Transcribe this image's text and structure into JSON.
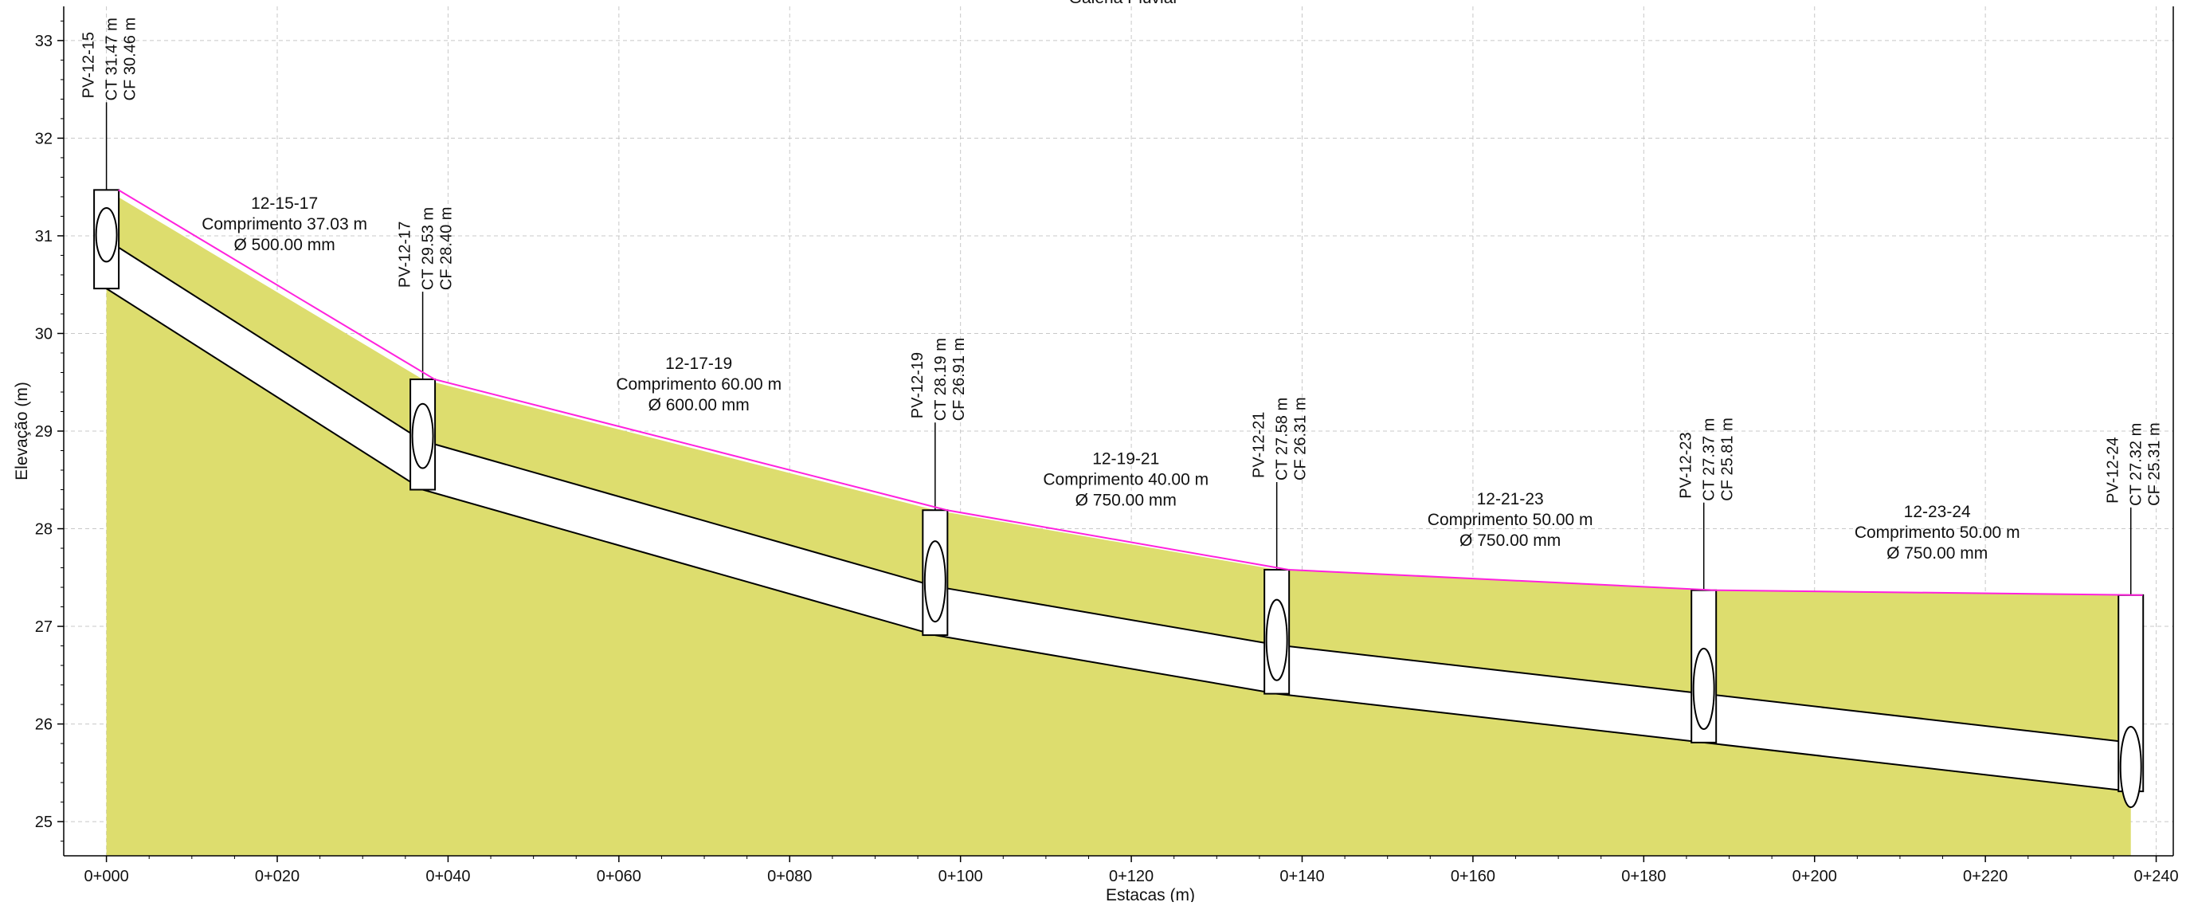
{
  "chart_data": {
    "type": "area",
    "title": "Galeria Pluvial",
    "xlabel": "Estacas (m)",
    "ylabel": "Elevação (m)",
    "xlim": [
      -5,
      242
    ],
    "ylim": [
      24.65,
      33.35
    ],
    "grid": true,
    "x_ticks": [
      0,
      20,
      40,
      60,
      80,
      100,
      120,
      140,
      160,
      180,
      200,
      220,
      240
    ],
    "x_tick_labels": [
      "0+000",
      "0+020",
      "0+040",
      "0+060",
      "0+080",
      "0+100",
      "0+120",
      "0+140",
      "0+160",
      "0+180",
      "0+200",
      "0+220",
      "0+240"
    ],
    "y_ticks": [
      25,
      26,
      27,
      28,
      29,
      30,
      31,
      32,
      33
    ],
    "y_tick_labels": [
      "25",
      "26",
      "27",
      "28",
      "29",
      "30",
      "31",
      "32",
      "33"
    ],
    "ground_profile": {
      "x": [
        0,
        37.03,
        97.03,
        137.03,
        187.03,
        237.03
      ],
      "y": [
        31.47,
        29.53,
        28.19,
        27.58,
        27.37,
        27.32
      ]
    },
    "manholes": [
      {
        "name": "PV-12-15",
        "station": 0,
        "ct_label": "CT",
        "ct": "31.47 m",
        "cf_label": "CF",
        "cf": "30.46 m",
        "top": 31.47,
        "bottom": 30.46
      },
      {
        "name": "PV-12-17",
        "station": 37.03,
        "ct_label": "CT",
        "ct": "29.53 m",
        "cf_label": "CF",
        "cf": "28.40 m",
        "top": 29.53,
        "bottom": 28.4
      },
      {
        "name": "PV-12-19",
        "station": 97.03,
        "ct_label": "CT",
        "ct": "28.19 m",
        "cf_label": "CF",
        "cf": "26.91 m",
        "top": 28.19,
        "bottom": 26.91
      },
      {
        "name": "PV-12-21",
        "station": 137.03,
        "ct_label": "CT",
        "ct": "27.58 m",
        "cf_label": "CF",
        "cf": "26.31 m",
        "top": 27.58,
        "bottom": 26.31
      },
      {
        "name": "PV-12-23",
        "station": 187.03,
        "ct_label": "CT",
        "ct": "27.37 m",
        "cf_label": "CF",
        "cf": "25.81 m",
        "top": 27.37,
        "bottom": 25.81
      },
      {
        "name": "PV-12-24",
        "station": 237.03,
        "ct_label": "CT",
        "ct": "27.32 m",
        "cf_label": "CF",
        "cf": "25.31 m",
        "top": 27.32,
        "bottom": 25.31
      }
    ],
    "pipes": [
      {
        "name": "12-15-17",
        "length": "Comprimento 37.03 m",
        "diameter": "Ø 500.00 mm",
        "x0": 0,
        "x1": 37.03,
        "bottom0": 30.46,
        "bottom1": 28.4,
        "dia_m": 0.5
      },
      {
        "name": "12-17-19",
        "length": "Comprimento 60.00 m",
        "diameter": "Ø 600.00 mm",
        "x0": 37.03,
        "x1": 97.03,
        "bottom0": 28.4,
        "bottom1": 26.91,
        "dia_m": 0.6
      },
      {
        "name": "12-19-21",
        "length": "Comprimento 40.00 m",
        "diameter": "Ø 750.00 mm",
        "x0": 97.03,
        "x1": 137.03,
        "bottom0": 26.91,
        "bottom1": 26.31,
        "dia_m": 0.75
      },
      {
        "name": "12-21-23",
        "length": "Comprimento 50.00 m",
        "diameter": "Ø 750.00 mm",
        "x0": 137.03,
        "x1": 187.03,
        "bottom0": 26.31,
        "bottom1": 25.81,
        "dia_m": 0.75
      },
      {
        "name": "12-23-24",
        "length": "Comprimento 50.00 m",
        "diameter": "Ø 750.00 mm",
        "x0": 187.03,
        "x1": 237.03,
        "bottom0": 25.81,
        "bottom1": 25.31,
        "dia_m": 0.75
      }
    ],
    "colors": {
      "fill": "#dddd6e",
      "ground_line": "#ff22dd",
      "grid": "#c8c8c8",
      "outline": "#000000"
    }
  }
}
